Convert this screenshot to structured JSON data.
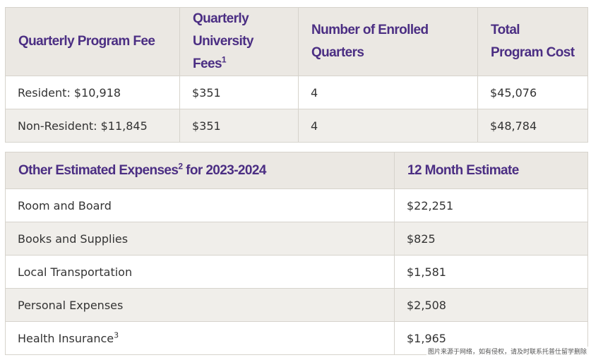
{
  "fees_table": {
    "headers": [
      {
        "text": "Quarterly Program Fee",
        "sup": ""
      },
      {
        "text": "Quarterly University Fees",
        "sup": "1"
      },
      {
        "text": "Number of Enrolled Quarters",
        "sup": ""
      },
      {
        "text": "Total Program Cost",
        "sup": ""
      }
    ],
    "rows": [
      [
        "Resident: $10,918",
        "$351",
        "4",
        "$45,076"
      ],
      [
        "Non-Resident: $11,845",
        "$351",
        "4",
        "$48,784"
      ]
    ]
  },
  "expenses_table": {
    "header_left": "Other Estimated Expenses",
    "header_left_sup": "2",
    "header_left_suffix": " for 2023-2024",
    "header_right": "12 Month Estimate",
    "rows": [
      {
        "label": "Room and Board",
        "sup": "",
        "value": "$22,251"
      },
      {
        "label": "Books and Supplies",
        "sup": "",
        "value": "$825"
      },
      {
        "label": "Local Transportation",
        "sup": "",
        "value": "$1,581"
      },
      {
        "label": "Personal Expenses",
        "sup": "",
        "value": "$2,508"
      },
      {
        "label": "Health Insurance",
        "sup": "3",
        "value": "$1,965"
      }
    ]
  },
  "watermark": "图片来源于网络，如有侵权，请及时联系托普仕留学删除",
  "colors": {
    "header_bg": "#ebe8e3",
    "header_text": "#4b2e83",
    "row_shade": "#f0eeea",
    "border": "#d6d3cc"
  }
}
